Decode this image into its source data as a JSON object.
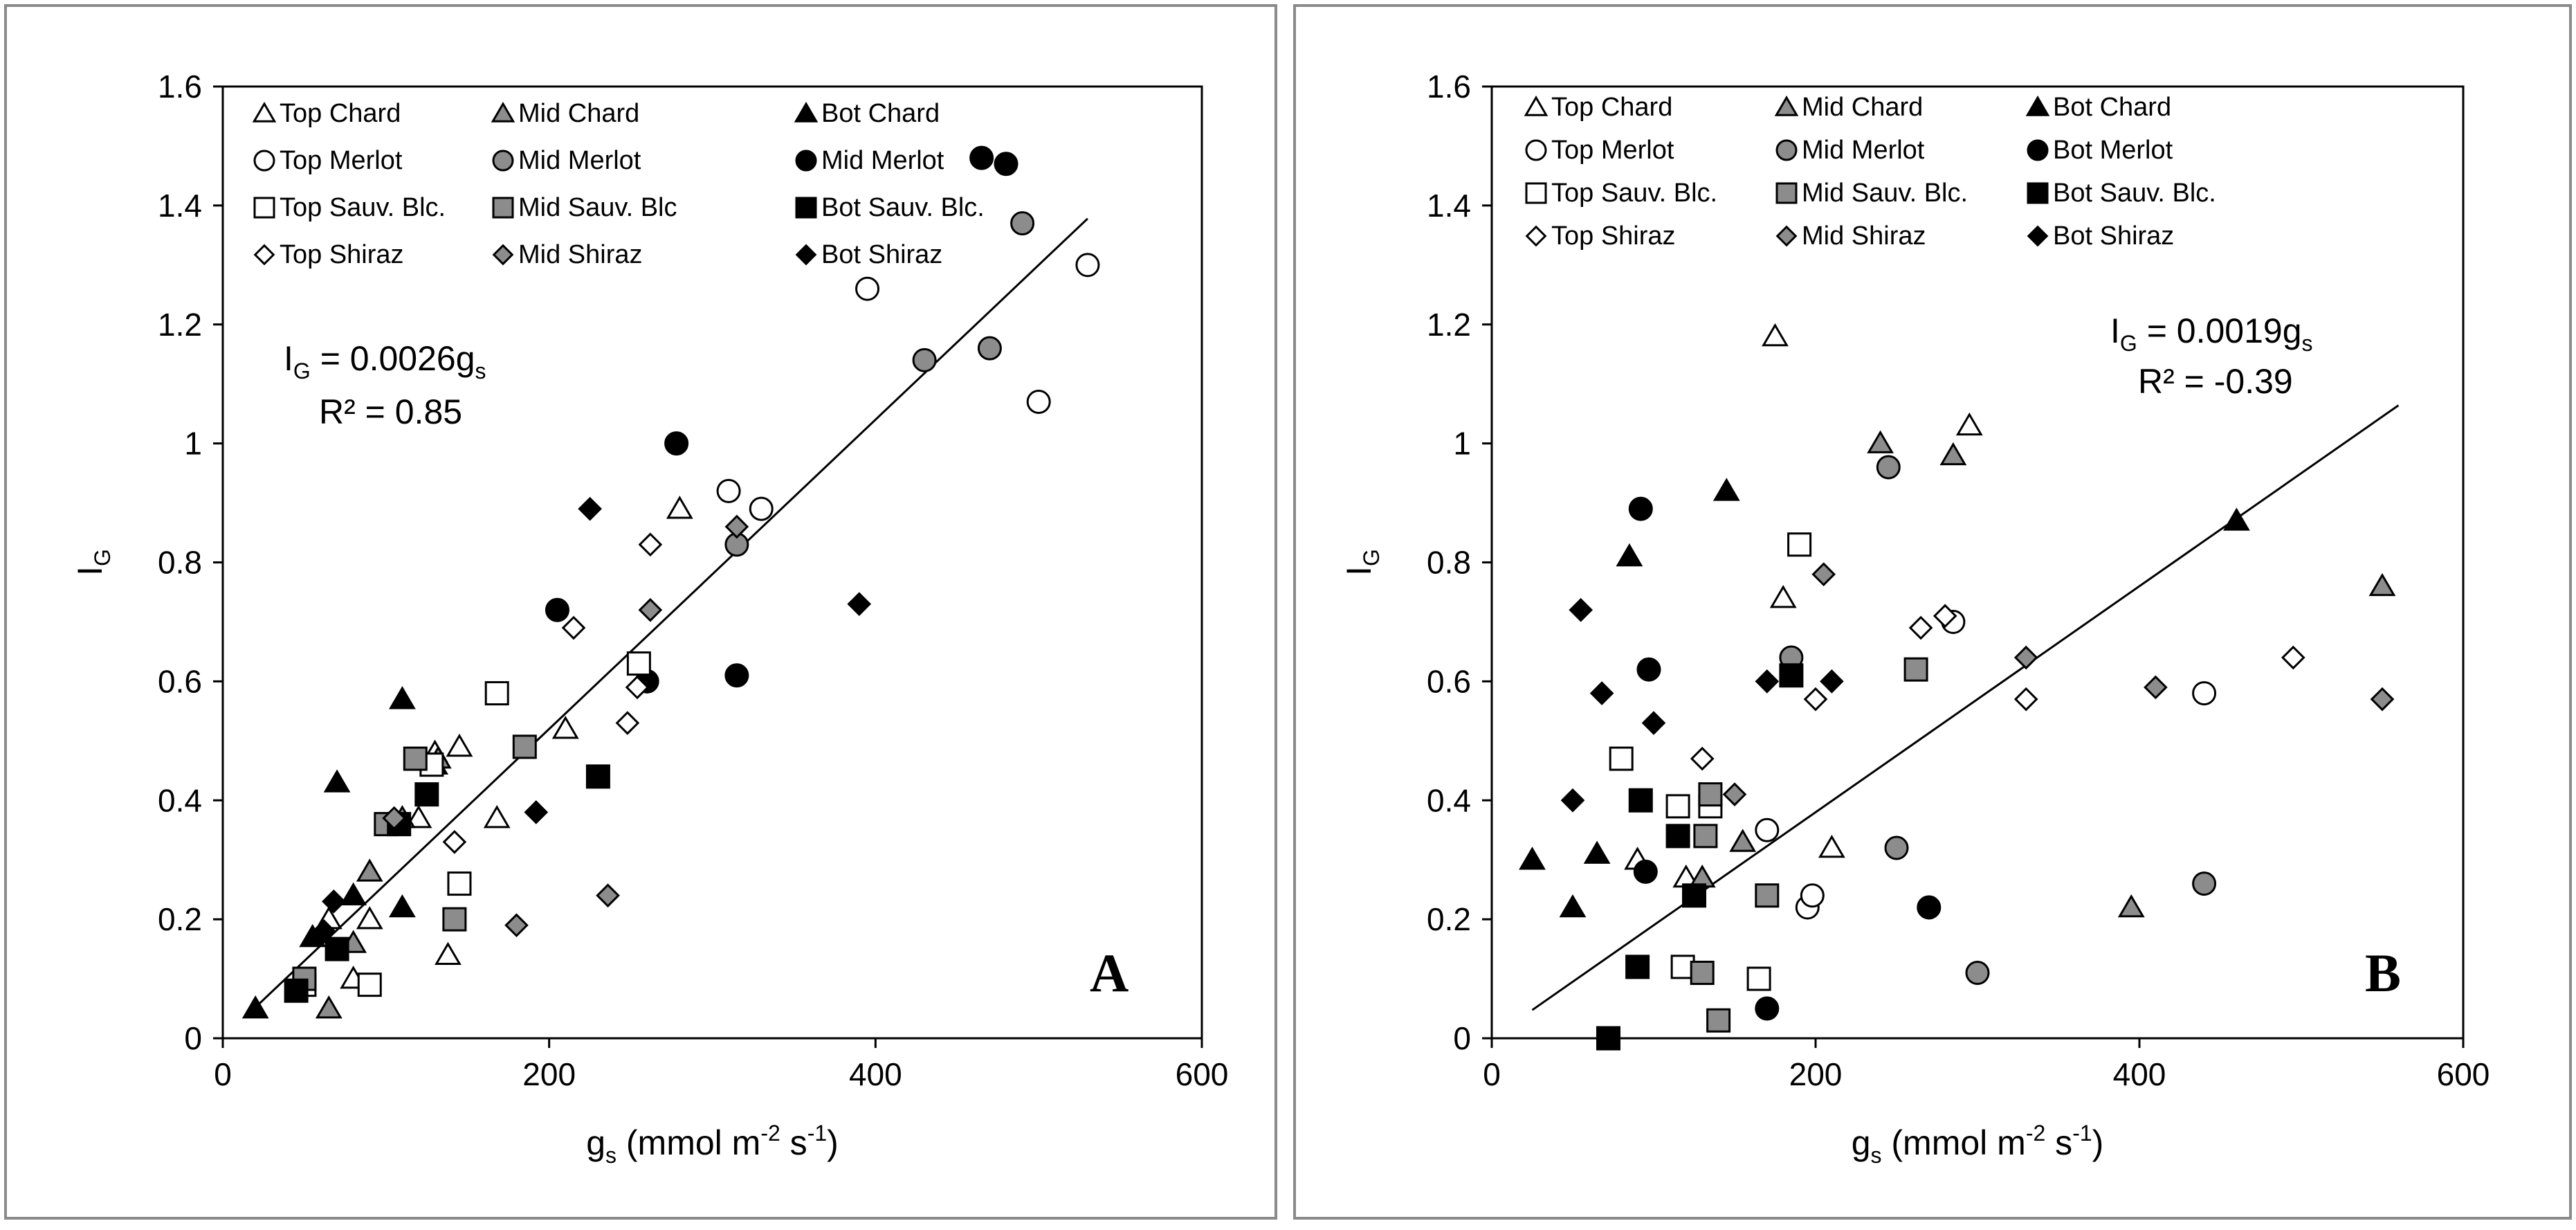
{
  "figure": "Two-panel scatter plot of I_G versus stomatal conductance g_s",
  "chart_data": [
    {
      "type": "scatter",
      "panel_label": "A",
      "title": "",
      "xlabel": {
        "base": "g",
        "sub": "s",
        "rest": " (mmol m",
        "sup1": "-2",
        "mid": " s",
        "sup2": "-1",
        "end": ")"
      },
      "ylabel": {
        "base": "I",
        "sub": "G"
      },
      "xlim": [
        0,
        600
      ],
      "ylim": [
        0,
        1.6
      ],
      "xticks": [
        0,
        200,
        400,
        600
      ],
      "yticks": [
        0,
        0.2,
        0.4,
        0.6,
        0.8,
        1,
        1.2,
        1.4,
        1.6
      ],
      "grid": false,
      "legend": [
        {
          "label": "Top Chard",
          "marker": "triangle",
          "fill": "#ffffff"
        },
        {
          "label": "Mid Chard",
          "marker": "triangle",
          "fill": "#8c8c8c"
        },
        {
          "label": "Bot Chard",
          "marker": "triangle",
          "fill": "#000000"
        },
        {
          "label": "Top Merlot",
          "marker": "circle",
          "fill": "#ffffff"
        },
        {
          "label": "Mid Merlot",
          "marker": "circle",
          "fill": "#8c8c8c"
        },
        {
          "label": "Mid Merlot",
          "marker": "circle",
          "fill": "#000000"
        },
        {
          "label": "Top Sauv. Blc.",
          "marker": "square",
          "fill": "#ffffff"
        },
        {
          "label": "Mid Sauv. Blc",
          "marker": "square",
          "fill": "#8c8c8c"
        },
        {
          "label": "Bot Sauv. Blc.",
          "marker": "square",
          "fill": "#000000"
        },
        {
          "label": "Top Shiraz",
          "marker": "diamond",
          "fill": "#ffffff"
        },
        {
          "label": "Mid Shiraz",
          "marker": "diamond",
          "fill": "#8c8c8c"
        },
        {
          "label": "Bot Shiraz",
          "marker": "diamond",
          "fill": "#000000"
        }
      ],
      "equation": {
        "base": "I",
        "sub": "G",
        "mid": " = 0.0026g",
        "sub2": "s"
      },
      "r2_text": "R² = 0.85",
      "trendline": {
        "slope": 0.0026,
        "x_from": 20,
        "x_to": 530
      },
      "series": [
        {
          "name": "Top Chard",
          "marker": "triangle",
          "fill": "#ffffff",
          "points": [
            [
              65,
              0.2
            ],
            [
              80,
              0.1
            ],
            [
              90,
              0.2
            ],
            [
              120,
              0.37
            ],
            [
              130,
              0.48
            ],
            [
              138,
              0.14
            ],
            [
              145,
              0.49
            ],
            [
              168,
              0.37
            ],
            [
              210,
              0.52
            ],
            [
              280,
              0.89
            ]
          ]
        },
        {
          "name": "Mid Chard",
          "marker": "triangle",
          "fill": "#8c8c8c",
          "points": [
            [
              65,
              0.05
            ],
            [
              80,
              0.16
            ],
            [
              90,
              0.28
            ],
            [
              110,
              0.37
            ],
            [
              132,
              0.47
            ]
          ]
        },
        {
          "name": "Bot Chard",
          "marker": "triangle",
          "fill": "#000000",
          "points": [
            [
              20,
              0.05
            ],
            [
              55,
              0.17
            ],
            [
              70,
              0.43
            ],
            [
              80,
              0.24
            ],
            [
              110,
              0.22
            ],
            [
              110,
              0.57
            ],
            [
              130,
              0.46
            ]
          ]
        },
        {
          "name": "Top Merlot",
          "marker": "circle",
          "fill": "#ffffff",
          "points": [
            [
              310,
              0.92
            ],
            [
              330,
              0.89
            ],
            [
              395,
              1.26
            ],
            [
              500,
              1.07
            ],
            [
              530,
              1.3
            ]
          ]
        },
        {
          "name": "Mid Merlot",
          "marker": "circle",
          "fill": "#8c8c8c",
          "points": [
            [
              315,
              0.83
            ],
            [
              430,
              1.14
            ],
            [
              470,
              1.16
            ],
            [
              490,
              1.37
            ]
          ]
        },
        {
          "name": "Mid Merlot",
          "marker": "circle",
          "fill": "#000000",
          "points": [
            [
              205,
              0.72
            ],
            [
              260,
              0.6
            ],
            [
              278,
              1.0
            ],
            [
              315,
              0.61
            ],
            [
              465,
              1.48
            ],
            [
              480,
              1.47
            ]
          ]
        },
        {
          "name": "Top Sauv. Blc.",
          "marker": "square",
          "fill": "#ffffff",
          "points": [
            [
              50,
              0.09
            ],
            [
              90,
              0.09
            ],
            [
              128,
              0.46
            ],
            [
              145,
              0.26
            ],
            [
              168,
              0.58
            ],
            [
              255,
              0.63
            ]
          ]
        },
        {
          "name": "Mid Sauv. Blc",
          "marker": "square",
          "fill": "#8c8c8c",
          "points": [
            [
              50,
              0.1
            ],
            [
              100,
              0.36
            ],
            [
              118,
              0.47
            ],
            [
              142,
              0.2
            ],
            [
              185,
              0.49
            ]
          ]
        },
        {
          "name": "Bot Sauv. Blc.",
          "marker": "square",
          "fill": "#000000",
          "points": [
            [
              45,
              0.08
            ],
            [
              70,
              0.15
            ],
            [
              108,
              0.36
            ],
            [
              125,
              0.41
            ],
            [
              230,
              0.44
            ]
          ]
        },
        {
          "name": "Top Shiraz",
          "marker": "diamond",
          "fill": "#ffffff",
          "points": [
            [
              142,
              0.33
            ],
            [
              215,
              0.69
            ],
            [
              248,
              0.53
            ],
            [
              254,
              0.59
            ],
            [
              262,
              0.83
            ]
          ]
        },
        {
          "name": "Mid Shiraz",
          "marker": "diamond",
          "fill": "#8c8c8c",
          "points": [
            [
              105,
              0.37
            ],
            [
              180,
              0.19
            ],
            [
              236,
              0.24
            ],
            [
              262,
              0.72
            ],
            [
              315,
              0.86
            ]
          ]
        },
        {
          "name": "Bot Shiraz",
          "marker": "diamond",
          "fill": "#000000",
          "points": [
            [
              62,
              0.18
            ],
            [
              68,
              0.23
            ],
            [
              192,
              0.38
            ],
            [
              225,
              0.89
            ],
            [
              390,
              0.73
            ]
          ]
        }
      ]
    },
    {
      "type": "scatter",
      "panel_label": "B",
      "title": "",
      "xlabel": {
        "base": "g",
        "sub": "s",
        "rest": " (mmol m",
        "sup1": "-2",
        "mid": " s",
        "sup2": "-1",
        "end": ")"
      },
      "ylabel": {
        "base": "I",
        "sub": "G"
      },
      "xlim": [
        0,
        600
      ],
      "ylim": [
        0,
        1.6
      ],
      "xticks": [
        0,
        200,
        400,
        600
      ],
      "yticks": [
        0,
        0.2,
        0.4,
        0.6,
        0.8,
        1,
        1.2,
        1.4,
        1.6
      ],
      "grid": false,
      "legend": [
        {
          "label": "Top Chard",
          "marker": "triangle",
          "fill": "#ffffff"
        },
        {
          "label": "Mid Chard",
          "marker": "triangle",
          "fill": "#8c8c8c"
        },
        {
          "label": "Bot Chard",
          "marker": "triangle",
          "fill": "#000000"
        },
        {
          "label": "Top Merlot",
          "marker": "circle",
          "fill": "#ffffff"
        },
        {
          "label": "Mid Merlot",
          "marker": "circle",
          "fill": "#8c8c8c"
        },
        {
          "label": "Bot Merlot",
          "marker": "circle",
          "fill": "#000000"
        },
        {
          "label": "Top Sauv. Blc.",
          "marker": "square",
          "fill": "#ffffff"
        },
        {
          "label": "Mid Sauv. Blc.",
          "marker": "square",
          "fill": "#8c8c8c"
        },
        {
          "label": "Bot Sauv. Blc.",
          "marker": "square",
          "fill": "#000000"
        },
        {
          "label": "Top Shiraz",
          "marker": "diamond",
          "fill": "#ffffff"
        },
        {
          "label": "Mid Shiraz",
          "marker": "diamond",
          "fill": "#8c8c8c"
        },
        {
          "label": "Bot Shiraz",
          "marker": "diamond",
          "fill": "#000000"
        }
      ],
      "equation": {
        "base": "I",
        "sub": "G",
        "mid": " = 0.0019g",
        "sub2": "s"
      },
      "r2_text": "R² = -0.39",
      "trendline": {
        "slope": 0.0019,
        "x_from": 25,
        "x_to": 560
      },
      "series": [
        {
          "name": "Top Chard",
          "marker": "triangle",
          "fill": "#ffffff",
          "points": [
            [
              90,
              0.3
            ],
            [
              120,
              0.27
            ],
            [
              180,
              0.74
            ],
            [
              175,
              1.18
            ],
            [
              210,
              0.32
            ],
            [
              295,
              1.03
            ]
          ]
        },
        {
          "name": "Mid Chard",
          "marker": "triangle",
          "fill": "#8c8c8c",
          "points": [
            [
              130,
              0.27
            ],
            [
              155,
              0.33
            ],
            [
              240,
              1.0
            ],
            [
              285,
              0.98
            ],
            [
              395,
              0.22
            ],
            [
              550,
              0.76
            ]
          ]
        },
        {
          "name": "Bot Chard",
          "marker": "triangle",
          "fill": "#000000",
          "points": [
            [
              25,
              0.3
            ],
            [
              50,
              0.22
            ],
            [
              65,
              0.31
            ],
            [
              85,
              0.81
            ],
            [
              145,
              0.92
            ],
            [
              460,
              0.87
            ]
          ]
        },
        {
          "name": "Top Merlot",
          "marker": "circle",
          "fill": "#ffffff",
          "points": [
            [
              170,
              0.35
            ],
            [
              195,
              0.22
            ],
            [
              198,
              0.24
            ],
            [
              285,
              0.7
            ],
            [
              440,
              0.58
            ]
          ]
        },
        {
          "name": "Mid Merlot",
          "marker": "circle",
          "fill": "#8c8c8c",
          "points": [
            [
              185,
              0.64
            ],
            [
              245,
              0.96
            ],
            [
              250,
              0.32
            ],
            [
              300,
              0.11
            ],
            [
              440,
              0.26
            ]
          ]
        },
        {
          "name": "Bot Merlot",
          "marker": "circle",
          "fill": "#000000",
          "points": [
            [
              92,
              0.89
            ],
            [
              95,
              0.28
            ],
            [
              97,
              0.62
            ],
            [
              170,
              0.05
            ],
            [
              270,
              0.22
            ]
          ]
        },
        {
          "name": "Top Sauv. Blc.",
          "marker": "square",
          "fill": "#ffffff",
          "points": [
            [
              80,
              0.47
            ],
            [
              115,
              0.39
            ],
            [
              118,
              0.12
            ],
            [
              135,
              0.39
            ],
            [
              165,
              0.1
            ],
            [
              190,
              0.83
            ]
          ]
        },
        {
          "name": "Mid Sauv. Blc.",
          "marker": "square",
          "fill": "#8c8c8c",
          "points": [
            [
              130,
              0.11
            ],
            [
              132,
              0.34
            ],
            [
              135,
              0.41
            ],
            [
              140,
              0.03
            ],
            [
              170,
              0.24
            ],
            [
              262,
              0.62
            ]
          ]
        },
        {
          "name": "Bot Sauv. Blc.",
          "marker": "square",
          "fill": "#000000",
          "points": [
            [
              72,
              0.0
            ],
            [
              90,
              0.12
            ],
            [
              92,
              0.4
            ],
            [
              115,
              0.34
            ],
            [
              125,
              0.24
            ],
            [
              185,
              0.61
            ]
          ]
        },
        {
          "name": "Top Shiraz",
          "marker": "diamond",
          "fill": "#ffffff",
          "points": [
            [
              130,
              0.47
            ],
            [
              200,
              0.57
            ],
            [
              265,
              0.69
            ],
            [
              280,
              0.71
            ],
            [
              330,
              0.57
            ],
            [
              495,
              0.64
            ]
          ]
        },
        {
          "name": "Mid Shiraz",
          "marker": "diamond",
          "fill": "#8c8c8c",
          "points": [
            [
              150,
              0.41
            ],
            [
              205,
              0.78
            ],
            [
              330,
              0.64
            ],
            [
              410,
              0.59
            ],
            [
              550,
              0.57
            ]
          ]
        },
        {
          "name": "Bot Shiraz",
          "marker": "diamond",
          "fill": "#000000",
          "points": [
            [
              50,
              0.4
            ],
            [
              55,
              0.72
            ],
            [
              68,
              0.58
            ],
            [
              100,
              0.53
            ],
            [
              170,
              0.6
            ],
            [
              210,
              0.6
            ]
          ]
        }
      ]
    }
  ]
}
